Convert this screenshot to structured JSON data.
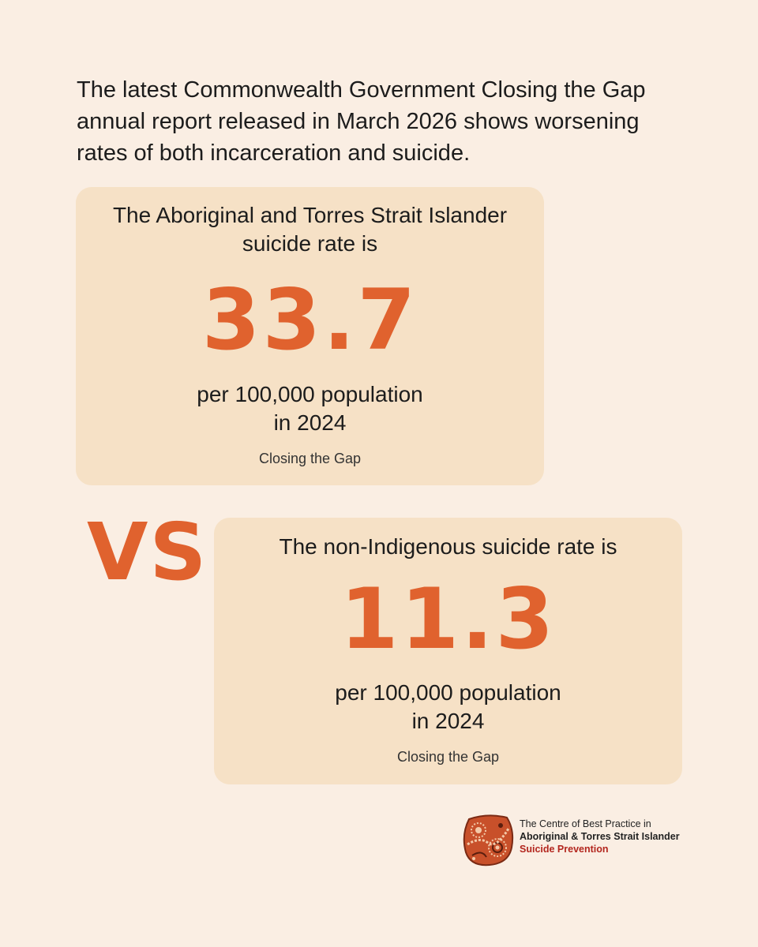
{
  "intro": "The latest Commonwealth Government Closing the Gap annual report released in March 2026 shows worsening rates of both incarceration and suicide.",
  "card1": {
    "lead_line1": "The Aboriginal and Torres Strait Islander",
    "lead_line2": "suicide rate is",
    "value": "33.7",
    "unit_line1": "per 100,000 population",
    "unit_line2": "in 2024",
    "source": "Closing the Gap"
  },
  "vs": "VS",
  "card2": {
    "lead": "The non-Indigenous suicide rate is",
    "value": "11.3",
    "unit_line1": "per 100,000 population",
    "unit_line2": "in 2024",
    "source": "Closing the Gap"
  },
  "logo": {
    "line1": "The Centre of Best Practice in",
    "line2": "Aboriginal & Torres Strait Islander",
    "line3": "Suicide Prevention",
    "icon": "dot-painting-emblem"
  },
  "colors": {
    "background": "#FAEEE3",
    "card": "#F6E1C6",
    "accent": "#E0622E",
    "logo_red": "#B3261E"
  }
}
